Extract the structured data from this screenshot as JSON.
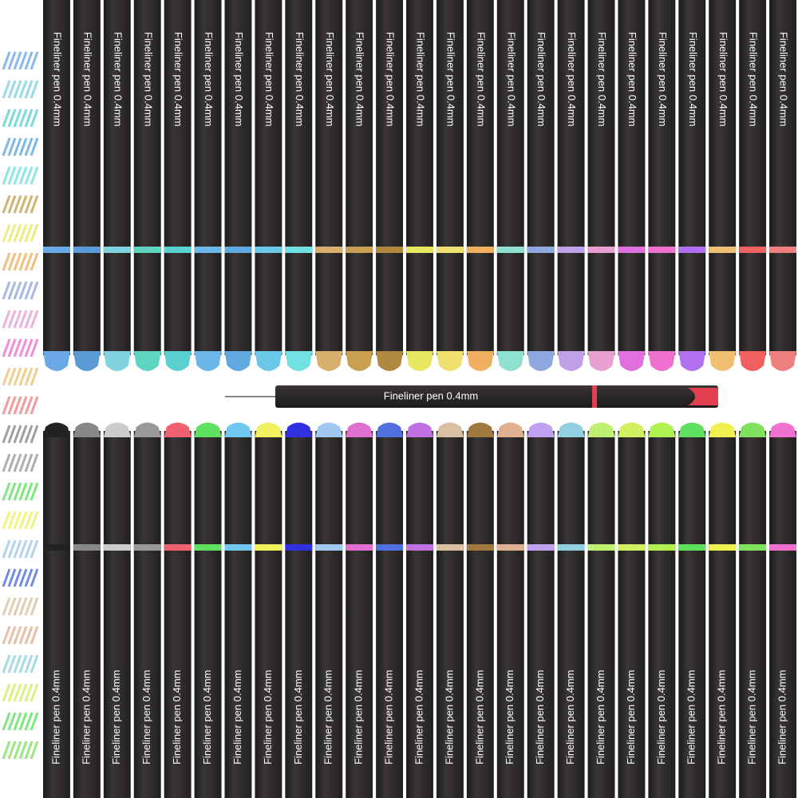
{
  "top_row": {
    "pens": [
      {
        "label": "Fineliner pen 0.4mm",
        "color": "#6aa8e8"
      },
      {
        "label": "Fineliner pen 0.4mm",
        "color": "#5b9bd5"
      },
      {
        "label": "Fineliner pen 0.4mm",
        "color": "#7fd3e0"
      },
      {
        "label": "Fineliner pen 0.4mm",
        "color": "#5fd4c0"
      },
      {
        "label": "Fineliner pen 0.4mm",
        "color": "#5ad0d0"
      },
      {
        "label": "Fineliner pen 0.4mm",
        "color": "#6bb8e8"
      },
      {
        "label": "Fineliner pen 0.4mm",
        "color": "#5fa8e0"
      },
      {
        "label": "Fineliner pen 0.4mm",
        "color": "#6cc8e8"
      },
      {
        "label": "Fineliner pen 0.4mm",
        "color": "#70e0e0"
      },
      {
        "label": "Fineliner pen 0.4mm",
        "color": "#d8b070"
      },
      {
        "label": "Fineliner pen 0.4mm",
        "color": "#c8a050"
      },
      {
        "label": "Fineliner pen 0.4mm",
        "color": "#b08840"
      },
      {
        "label": "Fineliner pen 0.4mm",
        "color": "#e8e860"
      },
      {
        "label": "Fineliner pen 0.4mm",
        "color": "#f0e070"
      },
      {
        "label": "Fineliner pen 0.4mm",
        "color": "#f0b060"
      },
      {
        "label": "Fineliner pen 0.4mm",
        "color": "#90e0d0"
      },
      {
        "label": "Fineliner pen 0.4mm",
        "color": "#8fa8e0"
      },
      {
        "label": "Fineliner pen 0.4mm",
        "color": "#c0a0e8"
      },
      {
        "label": "Fineliner pen 0.4mm",
        "color": "#e8a0d0"
      },
      {
        "label": "Fineliner pen 0.4mm",
        "color": "#e070e0"
      },
      {
        "label": "Fineliner pen 0.4mm",
        "color": "#f070d0"
      },
      {
        "label": "Fineliner pen 0.4mm",
        "color": "#b070f0"
      },
      {
        "label": "Fineliner pen 0.4mm",
        "color": "#f0c070"
      },
      {
        "label": "Fineliner pen 0.4mm",
        "color": "#f06060"
      },
      {
        "label": "Fineliner pen 0.4mm",
        "color": "#f08080"
      }
    ]
  },
  "featured_pen": {
    "label": "Fineliner pen 0.4mm",
    "color": "#e04050"
  },
  "bottom_row": {
    "pens": [
      {
        "label": "Fineliner pen 0.4mm",
        "color": "#222222"
      },
      {
        "label": "Fineliner pen 0.4mm",
        "color": "#888888"
      },
      {
        "label": "Fineliner pen 0.4mm",
        "color": "#cccccc"
      },
      {
        "label": "Fineliner pen 0.4mm",
        "color": "#999999"
      },
      {
        "label": "Fineliner pen 0.4mm",
        "color": "#f06070"
      },
      {
        "label": "Fineliner pen 0.4mm",
        "color": "#60e060"
      },
      {
        "label": "Fineliner pen 0.4mm",
        "color": "#70c8f0"
      },
      {
        "label": "Fineliner pen 0.4mm",
        "color": "#f0f060"
      },
      {
        "label": "Fineliner pen 0.4mm",
        "color": "#3030e0"
      },
      {
        "label": "Fineliner pen 0.4mm",
        "color": "#a0c8f0"
      },
      {
        "label": "Fineliner pen 0.4mm",
        "color": "#e070d0"
      },
      {
        "label": "Fineliner pen 0.4mm",
        "color": "#5070e0"
      },
      {
        "label": "Fineliner pen 0.4mm",
        "color": "#c070e0"
      },
      {
        "label": "Fineliner pen 0.4mm",
        "color": "#d8c0a0"
      },
      {
        "label": "Fineliner pen 0.4mm",
        "color": "#a07840"
      },
      {
        "label": "Fineliner pen 0.4mm",
        "color": "#e0b090"
      },
      {
        "label": "Fineliner pen 0.4mm",
        "color": "#c0a0f0"
      },
      {
        "label": "Fineliner pen 0.4mm",
        "color": "#90d0e0"
      },
      {
        "label": "Fineliner pen 0.4mm",
        "color": "#c0f070"
      },
      {
        "label": "Fineliner pen 0.4mm",
        "color": "#d0f060"
      },
      {
        "label": "Fineliner pen 0.4mm",
        "color": "#b0f050"
      },
      {
        "label": "Fineliner pen 0.4mm",
        "color": "#60e060"
      },
      {
        "label": "Fineliner pen 0.4mm",
        "color": "#f0f050"
      },
      {
        "label": "Fineliner pen 0.4mm",
        "color": "#80e060"
      },
      {
        "label": "Fineliner pen 0.4mm",
        "color": "#f070d0"
      }
    ]
  }
}
